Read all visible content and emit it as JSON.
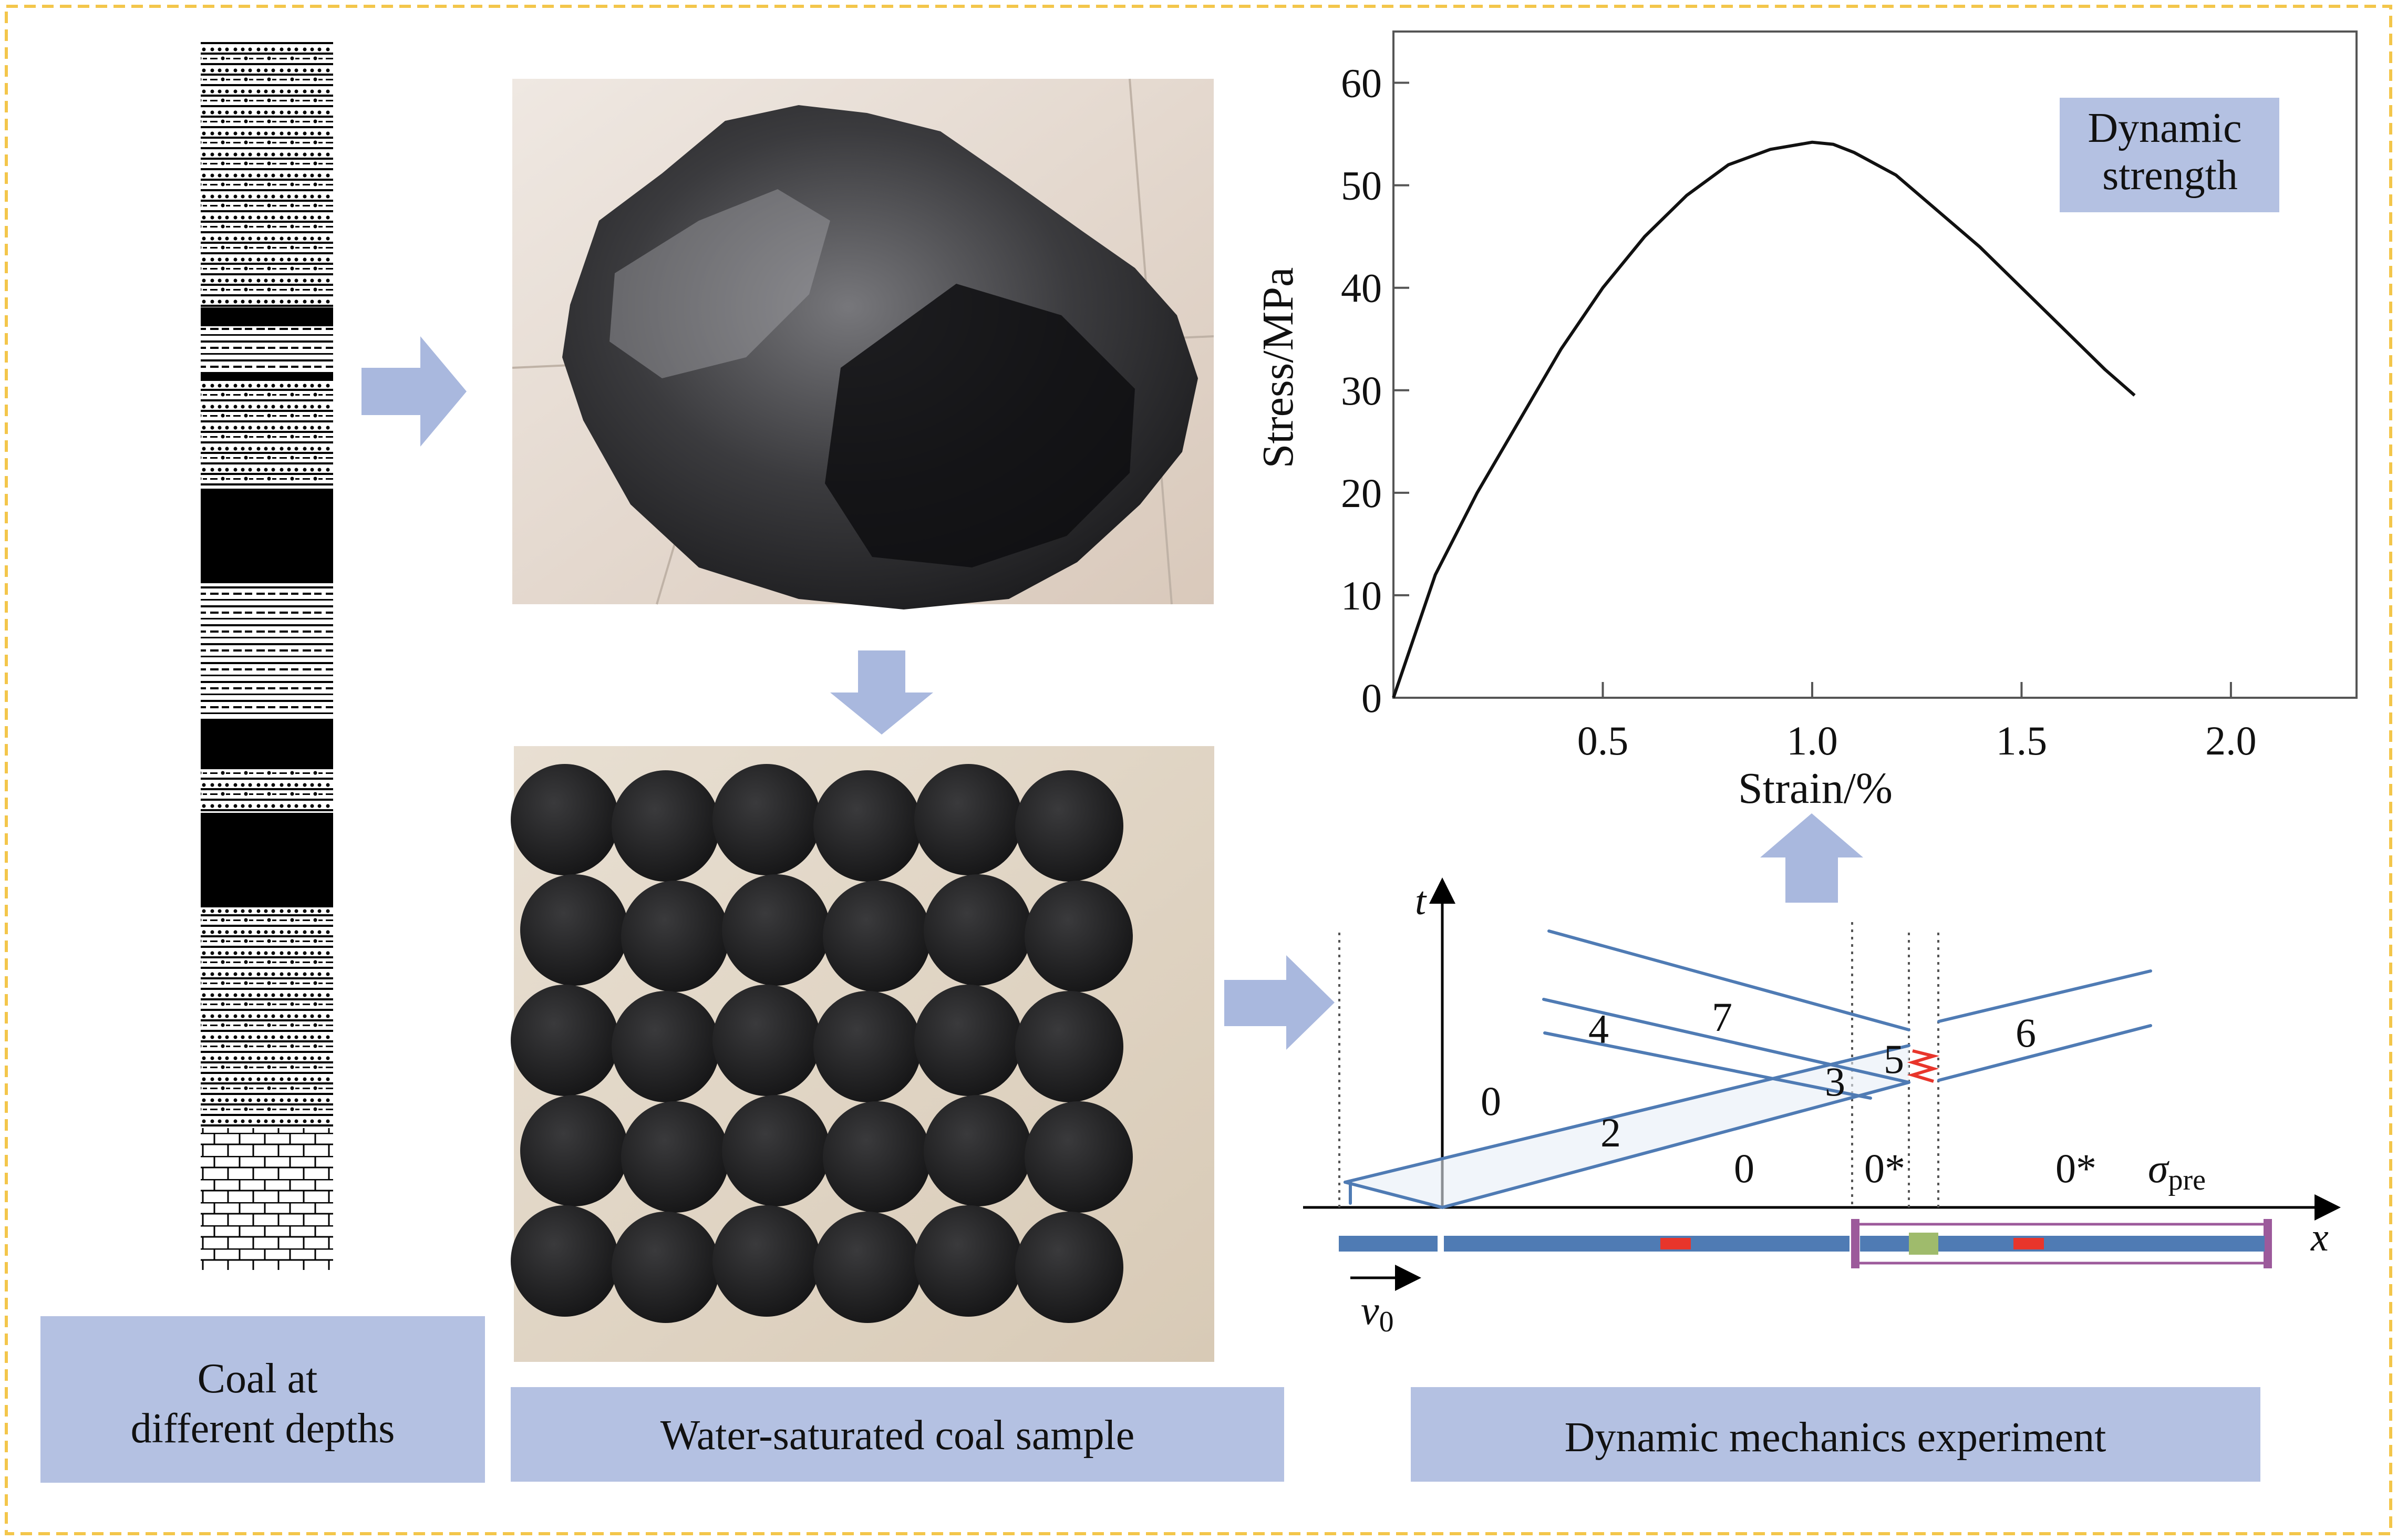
{
  "captions": {
    "coal_depths": [
      "Coal at",
      "different depths"
    ],
    "water_saturated": "Water-saturated coal sample",
    "dynamic_experiment": "Dynamic mechanics experiment"
  },
  "chart_data": {
    "type": "line",
    "title": "",
    "annotation": [
      "Dynamic",
      "strength"
    ],
    "xlabel": "Strain/%",
    "ylabel": "Stress/MPa",
    "xlim": [
      0,
      2.3
    ],
    "ylim": [
      0,
      65
    ],
    "xticks": [
      "0.5",
      "1.0",
      "1.5",
      "2.0"
    ],
    "xtick_values": [
      0.5,
      1.0,
      1.5,
      2.0
    ],
    "yticks": [
      "0",
      "10",
      "20",
      "30",
      "40",
      "50",
      "60"
    ],
    "ytick_values": [
      0,
      10,
      20,
      30,
      40,
      50,
      60
    ],
    "grid": false,
    "series": [
      {
        "x": [
          0,
          0.05,
          0.1,
          0.2,
          0.3,
          0.4,
          0.5,
          0.6,
          0.7,
          0.8,
          0.9,
          1.0,
          1.05,
          1.1,
          1.2,
          1.3,
          1.4,
          1.5,
          1.6,
          1.7,
          1.77
        ],
        "y": [
          0,
          6,
          12,
          20,
          27,
          34,
          40,
          45,
          49,
          52,
          53.5,
          54.2,
          54,
          53.2,
          51,
          47.5,
          44,
          40,
          36,
          32,
          29.5
        ]
      }
    ]
  },
  "wave_diagram": {
    "t_axis": "t",
    "x_axis": "x",
    "v0_base": "v",
    "v0_sub": "0",
    "sigma_base": "σ",
    "sigma_sub": "pre",
    "regions": [
      "0",
      "2",
      "0",
      "0*",
      "0*",
      "3",
      "4",
      "5",
      "6",
      "7"
    ]
  },
  "colors": {
    "border": "#f3c64b",
    "arrow": "#a9b8de",
    "caption_bg": "#b4c1e2",
    "wave_line": "#4f7bb4",
    "bar_fill": "#4f7bb4",
    "strain_gauge": "#e8352b",
    "sleeve": "#9c5a9b",
    "specimen": "#9fbb6c"
  }
}
